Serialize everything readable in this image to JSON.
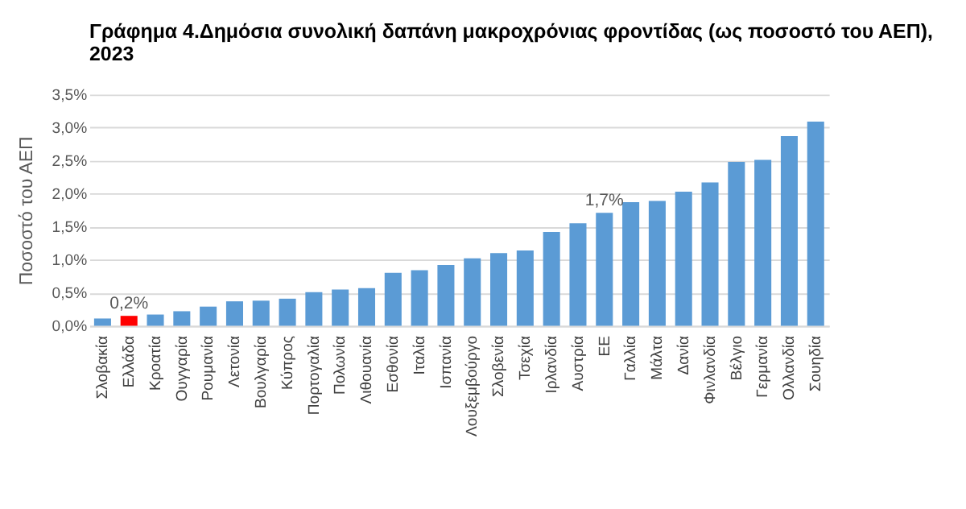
{
  "chart_data": {
    "type": "bar",
    "title": "Γράφημα 4.Δημόσια συνολική δαπάνη μακροχρόνιας φροντίδας (ως ποσοστό του ΑΕΠ), 2023",
    "ylabel": "Ποσοστό του ΑΕΠ",
    "categories": [
      "Σλοβακία",
      "Ελλάδα",
      "Κροατία",
      "Ουγγαρία",
      "Ρουμανία",
      "Λετονία",
      "Βουλγαρία",
      "Κύπρος",
      "Πορτογαλία",
      "Πολωνία",
      "Λιθουανία",
      "Εσθονία",
      "Ιταλία",
      "Ισπανία",
      "Λουξεμβούργο",
      "Σλοβενία",
      "Τσεχία",
      "Ιρλανδία",
      "Αυστρία",
      "ΕΕ",
      "Γαλλία",
      "Μάλτα",
      "Δανία",
      "Φινλανδία",
      "Βέλγιο",
      "Γερμανία",
      "Ολλανδία",
      "Σουηδία"
    ],
    "values": [
      0.11,
      0.15,
      0.17,
      0.22,
      0.29,
      0.37,
      0.38,
      0.41,
      0.51,
      0.55,
      0.57,
      0.8,
      0.84,
      0.92,
      1.02,
      1.1,
      1.14,
      1.42,
      1.55,
      1.71,
      1.87,
      1.89,
      2.03,
      2.17,
      2.48,
      2.51,
      2.87,
      3.09
    ],
    "colors": [
      "#5b9bd5",
      "#ff0000",
      "#5b9bd5",
      "#5b9bd5",
      "#5b9bd5",
      "#5b9bd5",
      "#5b9bd5",
      "#5b9bd5",
      "#5b9bd5",
      "#5b9bd5",
      "#5b9bd5",
      "#5b9bd5",
      "#5b9bd5",
      "#5b9bd5",
      "#5b9bd5",
      "#5b9bd5",
      "#5b9bd5",
      "#5b9bd5",
      "#5b9bd5",
      "#5b9bd5",
      "#5b9bd5",
      "#5b9bd5",
      "#5b9bd5",
      "#5b9bd5",
      "#5b9bd5",
      "#5b9bd5",
      "#5b9bd5",
      "#5b9bd5"
    ],
    "value_labels": [
      null,
      "0,2%",
      null,
      null,
      null,
      null,
      null,
      null,
      null,
      null,
      null,
      null,
      null,
      null,
      null,
      null,
      null,
      null,
      null,
      "1,7%",
      null,
      null,
      null,
      null,
      null,
      null,
      null,
      null
    ],
    "ylim": [
      0,
      3.5
    ],
    "yticks": [
      {
        "value": 0,
        "label": "0,0%"
      },
      {
        "value": 0.5,
        "label": "0,5%"
      },
      {
        "value": 1,
        "label": "1,0%"
      },
      {
        "value": 1.5,
        "label": "1,5%"
      },
      {
        "value": 2,
        "label": "2,0%"
      },
      {
        "value": 2.5,
        "label": "2,5%"
      },
      {
        "value": 3,
        "label": "3,0%"
      },
      {
        "value": 3.5,
        "label": "3,5%"
      }
    ],
    "grid": "y"
  }
}
